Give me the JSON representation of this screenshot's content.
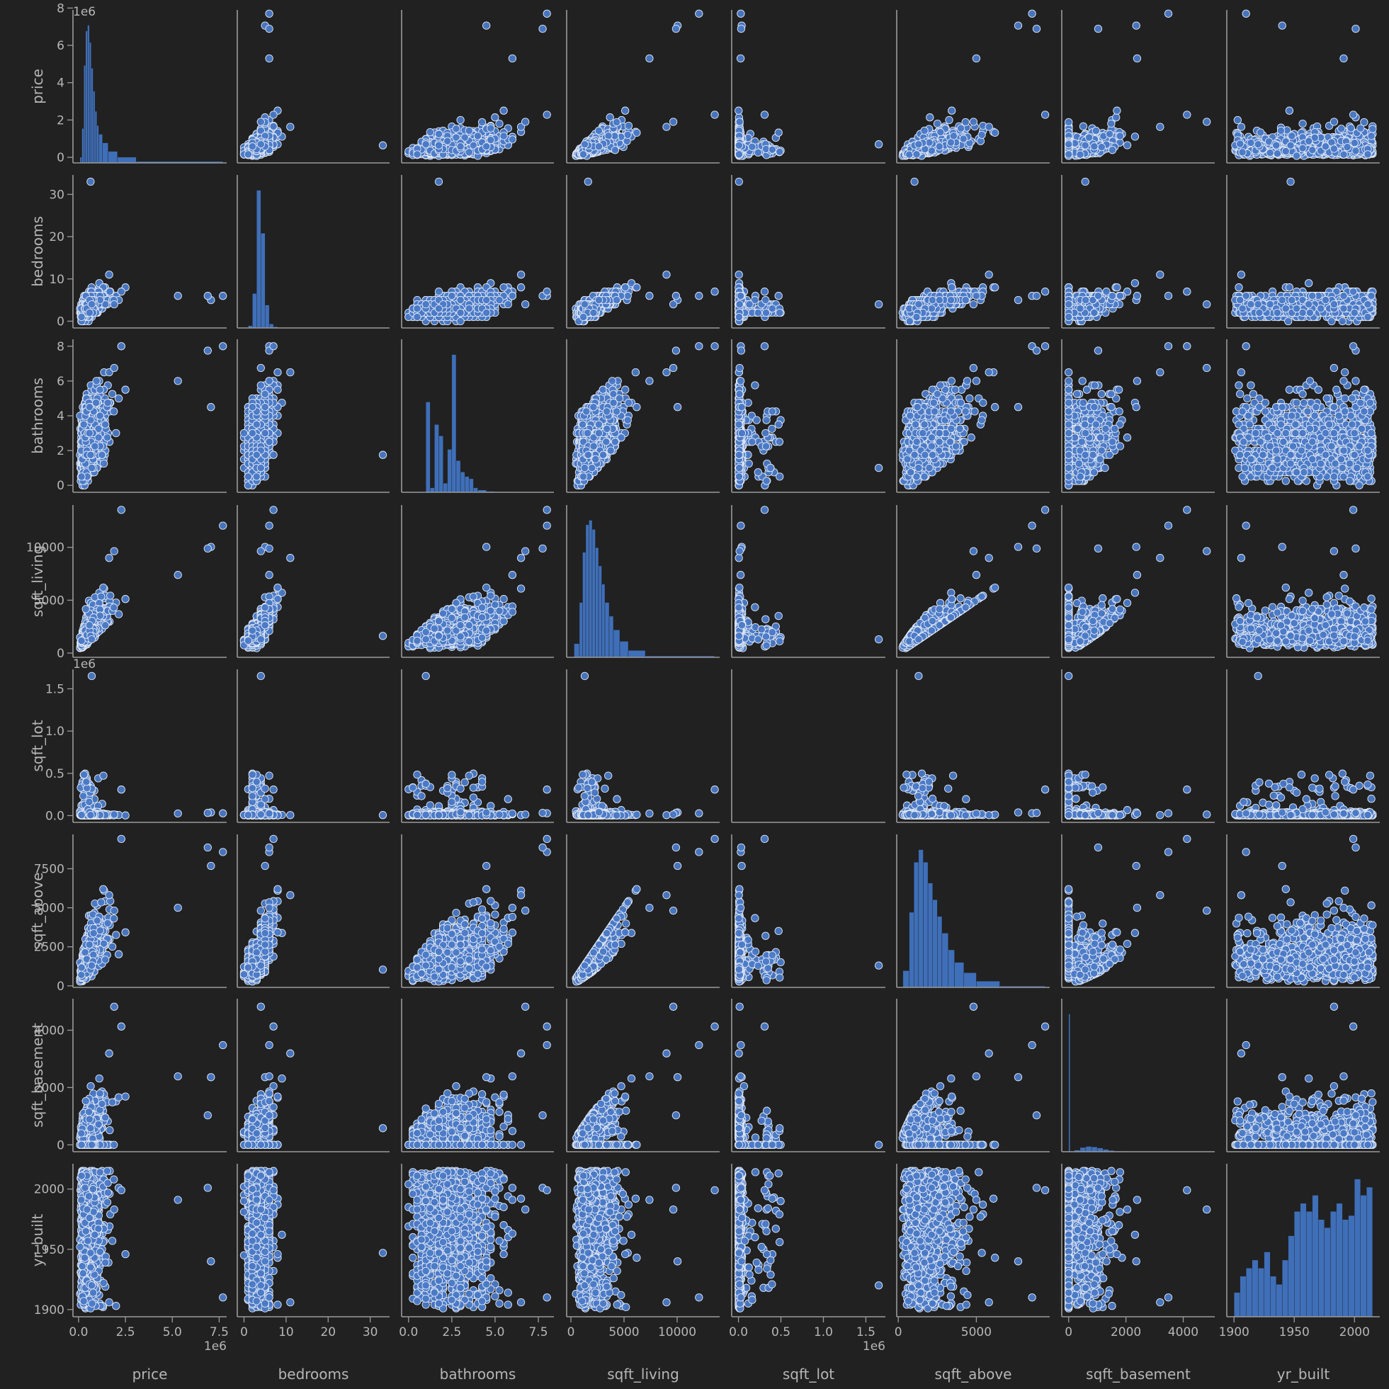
{
  "chart_data": {
    "type": "scatter",
    "kind": "pairplot",
    "variables": [
      "price",
      "bedrooms",
      "bathrooms",
      "sqft_living",
      "sqft_lot",
      "sqft_above",
      "sqft_basement",
      "yr_built"
    ],
    "axes": {
      "price": {
        "label": "price",
        "range": [
          -300000,
          7900000
        ],
        "ticks": [
          0,
          2000000,
          4000000,
          6000000,
          8000000
        ],
        "x_ticks": [
          0,
          2500000,
          5000000,
          7500000
        ],
        "tick_labels_y": [
          "0",
          "2",
          "4",
          "6",
          "8"
        ],
        "tick_labels_x": [
          "0.0",
          "2.5",
          "5.0",
          "7.5"
        ],
        "offset": "1e6"
      },
      "bedrooms": {
        "label": "bedrooms",
        "range": [
          -1.6,
          34.6
        ],
        "ticks": [
          0,
          10,
          20,
          30
        ],
        "tick_labels": [
          "0",
          "10",
          "20",
          "30"
        ]
      },
      "bathrooms": {
        "label": "bathrooms",
        "range": [
          -0.4,
          8.4
        ],
        "ticks": [
          0,
          2,
          4,
          6,
          8
        ],
        "x_ticks": [
          0,
          2.5,
          5,
          7.5
        ],
        "tick_labels_y": [
          "0",
          "2",
          "4",
          "6",
          "8"
        ],
        "tick_labels_x": [
          "0.0",
          "2.5",
          "5.0",
          "7.5"
        ]
      },
      "sqft_living": {
        "label": "sqft_living",
        "range": [
          -400,
          14000
        ],
        "ticks": [
          0,
          5000,
          10000
        ],
        "tick_labels": [
          "0",
          "5000",
          "10000"
        ]
      },
      "sqft_lot": {
        "label": "sqft_lot",
        "range": [
          -80000,
          1730000
        ],
        "ticks": [
          0,
          500000,
          1000000,
          1500000
        ],
        "tick_labels": [
          "0.0",
          "0.5",
          "1.0",
          "1.5"
        ],
        "offset": "1e6"
      },
      "sqft_above": {
        "label": "sqft_above",
        "range": [
          -100,
          9700
        ],
        "ticks": [
          0,
          2500,
          5000,
          7500
        ],
        "x_ticks": [
          0,
          5000
        ],
        "tick_labels_y": [
          "0",
          "2500",
          "5000",
          "7500"
        ],
        "tick_labels_x": [
          "0",
          "5000"
        ]
      },
      "sqft_basement": {
        "label": "sqft_basement",
        "range": [
          -240,
          5100
        ],
        "ticks": [
          0,
          2000,
          4000
        ],
        "tick_labels": [
          "0",
          "2000",
          "4000"
        ]
      },
      "yr_built": {
        "label": "yr_built",
        "range": [
          1894,
          2021
        ],
        "ticks": [
          1900,
          1950,
          2000
        ],
        "tick_labels": [
          "1900",
          "1950",
          "2000"
        ]
      }
    },
    "offsets_shown": [
      {
        "variable": "price",
        "axis": "y",
        "text": "1e6"
      },
      {
        "variable": "price",
        "axis": "x",
        "text": "1e6"
      },
      {
        "variable": "sqft_lot",
        "axis": "y",
        "text": "1e6"
      },
      {
        "variable": "sqft_lot",
        "axis": "x",
        "text": "1e6"
      }
    ],
    "diagonal": "histogram",
    "offdiagonal": "scatter",
    "grid": false,
    "legend": "none",
    "colors": {
      "background": "#212121",
      "marker_fill": "#4a79c6",
      "marker_edge": "#dfe7f4",
      "axis": "#9b9b9b",
      "text": "#b6b6b6"
    },
    "n_points_sampled": 1200,
    "histograms": {
      "price": {
        "bin_edges": [
          75000,
          175000,
          275000,
          375000,
          475000,
          575000,
          675000,
          775000,
          875000,
          975000,
          1075000,
          1275000,
          1575000,
          2075000,
          3075000,
          7700000
        ],
        "counts": [
          20,
          120,
          340,
          460,
          480,
          420,
          330,
          250,
          180,
          130,
          100,
          70,
          40,
          20,
          5
        ]
      },
      "bedrooms": {
        "bin_edges": [
          0,
          1,
          2,
          3,
          4,
          5,
          6,
          7,
          8,
          9,
          10,
          11,
          33
        ],
        "counts": [
          0,
          4,
          60,
          240,
          165,
          40,
          7,
          2,
          1,
          0,
          0,
          0
        ]
      },
      "bathrooms": {
        "bin_edges": [
          0.5,
          1,
          1.25,
          1.5,
          1.75,
          2,
          2.25,
          2.5,
          2.75,
          3,
          3.25,
          3.5,
          3.75,
          4,
          4.5,
          5,
          6
        ],
        "counts": [
          0,
          200,
          10,
          150,
          125,
          20,
          95,
          305,
          70,
          45,
          35,
          30,
          10,
          5,
          2,
          1
        ]
      },
      "sqft_living": {
        "bin_edges": [
          300,
          800,
          1100,
          1400,
          1700,
          2000,
          2300,
          2600,
          2900,
          3200,
          3600,
          4000,
          4600,
          5400,
          7000,
          13500
        ],
        "counts": [
          30,
          120,
          230,
          290,
          300,
          280,
          240,
          200,
          160,
          120,
          90,
          60,
          35,
          15,
          3
        ]
      },
      "sqft_lot": {
        "bin_edges": [
          0,
          1700000
        ],
        "counts": [
          0
        ]
      },
      "sqft_above": {
        "bin_edges": [
          300,
          700,
          1000,
          1300,
          1600,
          1900,
          2200,
          2500,
          2800,
          3200,
          3600,
          4200,
          5000,
          6500,
          9400
        ],
        "counts": [
          40,
          180,
          300,
          330,
          300,
          250,
          210,
          170,
          130,
          90,
          60,
          35,
          15,
          3
        ]
      },
      "sqft_basement": {
        "bin_edges": [
          0,
          50,
          200,
          400,
          600,
          800,
          1000,
          1200,
          1400,
          1600,
          2000,
          4800
        ],
        "counts": [
          1300,
          4,
          15,
          40,
          50,
          45,
          35,
          22,
          12,
          6,
          2
        ]
      },
      "yr_built": {
        "bin_edges": [
          1900,
          1905,
          1910,
          1915,
          1920,
          1925,
          1930,
          1935,
          1940,
          1945,
          1950,
          1955,
          1960,
          1965,
          1970,
          1975,
          1980,
          1985,
          1990,
          1995,
          2000,
          2005,
          2010,
          2015
        ],
        "counts": [
          6,
          10,
          12,
          14,
          12,
          16,
          10,
          8,
          14,
          20,
          26,
          28,
          26,
          30,
          24,
          22,
          26,
          28,
          24,
          25,
          34,
          30,
          32
        ]
      }
    },
    "outliers": [
      {
        "price": 7700000,
        "bedrooms": 6,
        "bathrooms": 8,
        "sqft_living": 12050,
        "sqft_lot": 27600,
        "sqft_above": 8570,
        "sqft_basement": 3480,
        "yr_built": 1910
      },
      {
        "price": 7060000,
        "bedrooms": 5,
        "bathrooms": 4.5,
        "sqft_living": 10040,
        "sqft_lot": 37325,
        "sqft_above": 7680,
        "sqft_basement": 2360,
        "yr_built": 1940
      },
      {
        "price": 6890000,
        "bedrooms": 6,
        "bathrooms": 7.75,
        "sqft_living": 9890,
        "sqft_lot": 31374,
        "sqft_above": 8860,
        "sqft_basement": 1030,
        "yr_built": 2001
      },
      {
        "price": 640000,
        "bedrooms": 33,
        "bathrooms": 1.75,
        "sqft_living": 1620,
        "sqft_lot": 6000,
        "sqft_above": 1040,
        "sqft_basement": 580,
        "yr_built": 1947
      },
      {
        "price": 2280000,
        "bedrooms": 7,
        "bathrooms": 8,
        "sqft_living": 13540,
        "sqft_lot": 307752,
        "sqft_above": 9410,
        "sqft_basement": 4130,
        "yr_built": 1999
      },
      {
        "price": 700000,
        "bedrooms": 4,
        "bathrooms": 1,
        "sqft_living": 1300,
        "sqft_lot": 1651359,
        "sqft_above": 1300,
        "sqft_basement": 0,
        "yr_built": 1920
      },
      {
        "price": 1900000,
        "bedrooms": 4,
        "bathrooms": 6.75,
        "sqft_living": 9640,
        "sqft_lot": 13068,
        "sqft_above": 4820,
        "sqft_basement": 4820,
        "yr_built": 1983
      },
      {
        "price": 5300000,
        "bedrooms": 6,
        "bathrooms": 6,
        "sqft_living": 7390,
        "sqft_lot": 24829,
        "sqft_above": 5000,
        "sqft_basement": 2390,
        "yr_built": 1991
      }
    ]
  }
}
